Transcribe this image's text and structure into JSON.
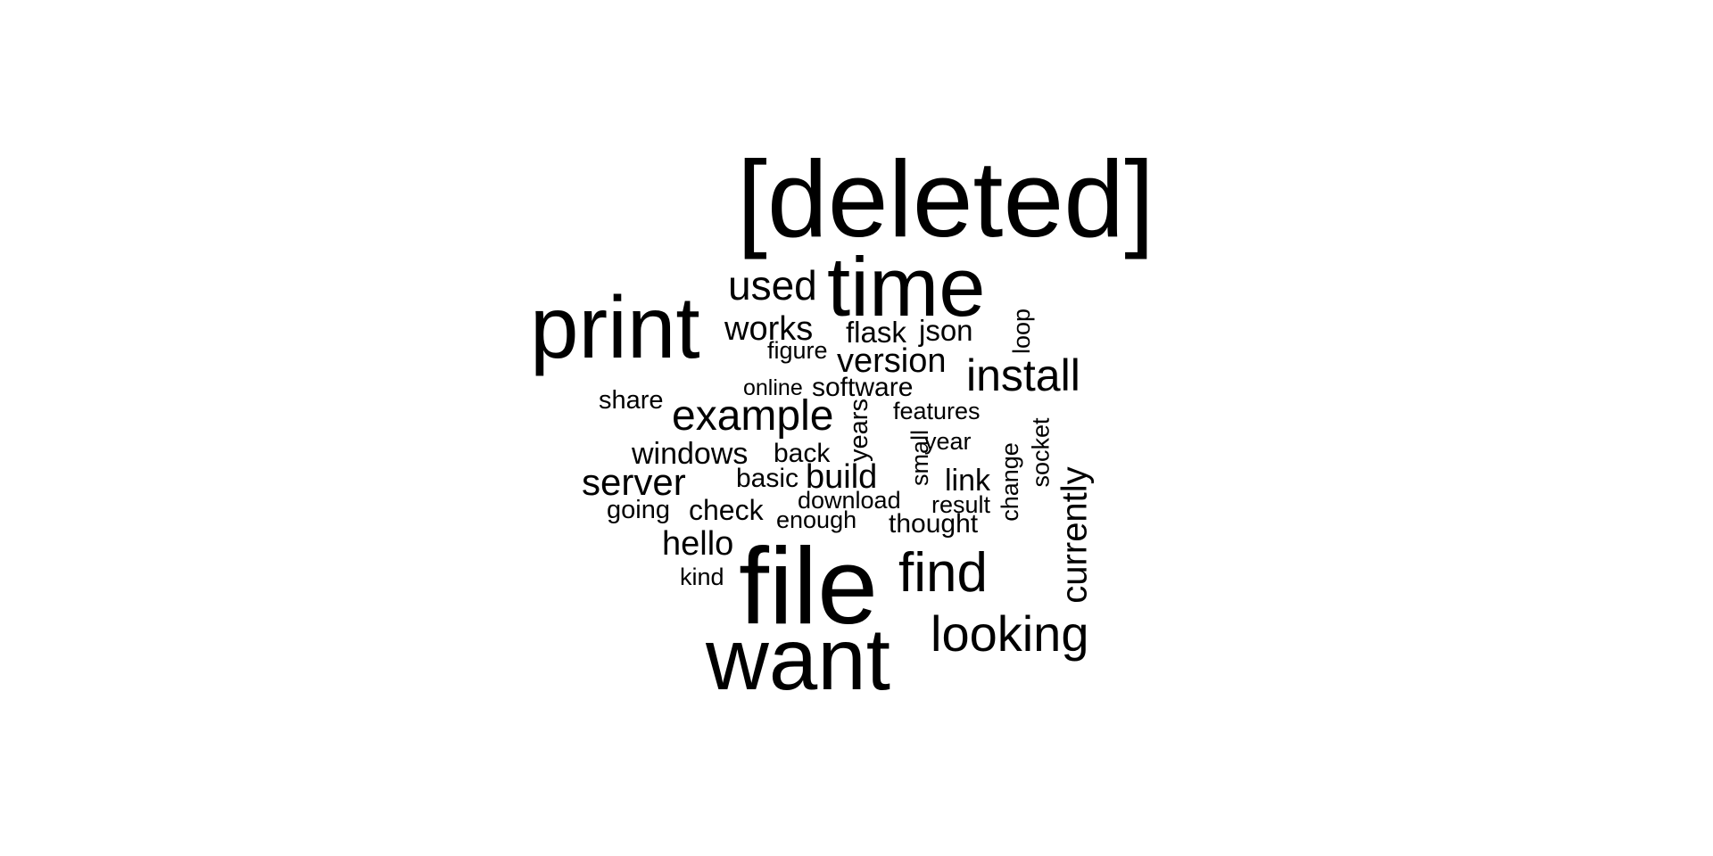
{
  "wordcloud": {
    "words": [
      {
        "text": "[deleted]"
      },
      {
        "text": "print"
      },
      {
        "text": "time"
      },
      {
        "text": "used"
      },
      {
        "text": "works"
      },
      {
        "text": "flask"
      },
      {
        "text": "json"
      },
      {
        "text": "loop"
      },
      {
        "text": "figure"
      },
      {
        "text": "version"
      },
      {
        "text": "install"
      },
      {
        "text": "online"
      },
      {
        "text": "software"
      },
      {
        "text": "share"
      },
      {
        "text": "example"
      },
      {
        "text": "years"
      },
      {
        "text": "features"
      },
      {
        "text": "socket"
      },
      {
        "text": "small"
      },
      {
        "text": "year"
      },
      {
        "text": "windows"
      },
      {
        "text": "back"
      },
      {
        "text": "change"
      },
      {
        "text": "currently"
      },
      {
        "text": "server"
      },
      {
        "text": "basic"
      },
      {
        "text": "build"
      },
      {
        "text": "link"
      },
      {
        "text": "download"
      },
      {
        "text": "result"
      },
      {
        "text": "going"
      },
      {
        "text": "check"
      },
      {
        "text": "enough"
      },
      {
        "text": "thought"
      },
      {
        "text": "hello"
      },
      {
        "text": "file"
      },
      {
        "text": "find"
      },
      {
        "text": "kind"
      },
      {
        "text": "looking"
      },
      {
        "text": "want"
      }
    ]
  }
}
